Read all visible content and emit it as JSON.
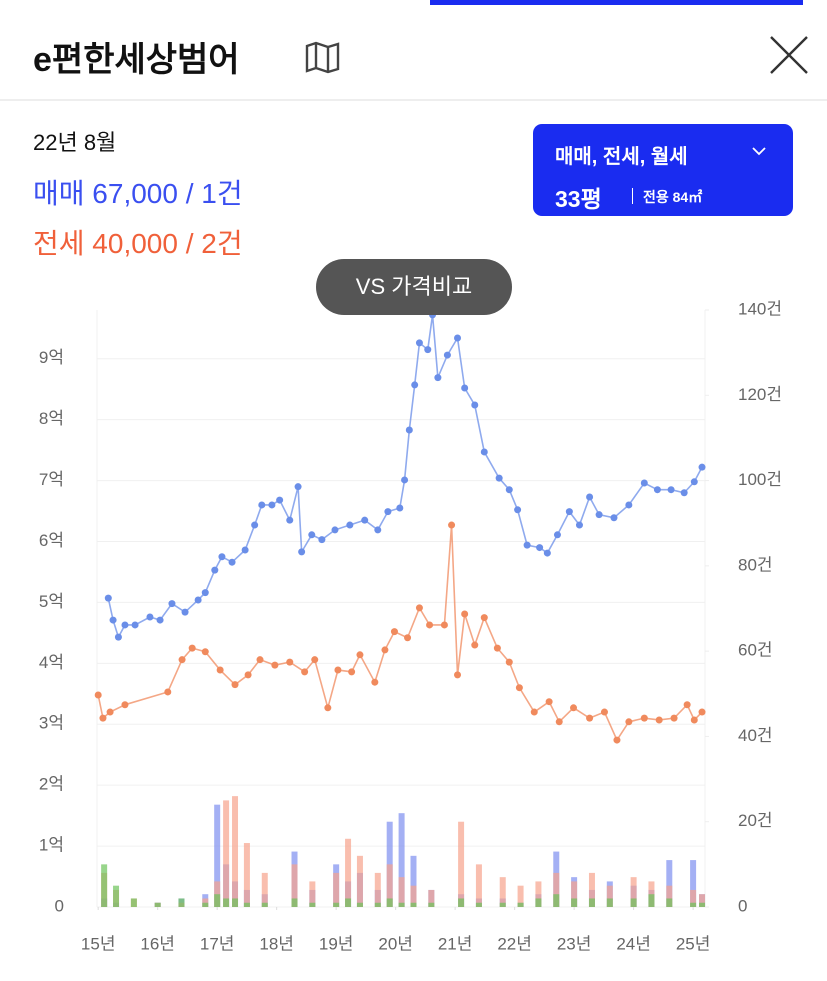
{
  "header": {
    "title": "e편한세상범어"
  },
  "summary": {
    "date": "22년 8월",
    "sale": "매매 67,000 / 1건",
    "rent": "전세 40,000 / 2건"
  },
  "filter": {
    "types": "매매, 전세, 월세",
    "size": "33평",
    "area": "전용 84㎡"
  },
  "tooltip": "VS 가격비교",
  "chart_data": {
    "type": "line",
    "xlim": [
      14.98,
      25.2
    ],
    "xticks": [
      {
        "value": 15,
        "label": "15년"
      },
      {
        "value": 16,
        "label": "16년"
      },
      {
        "value": 17,
        "label": "17년"
      },
      {
        "value": 18,
        "label": "18년"
      },
      {
        "value": 19,
        "label": "19년"
      },
      {
        "value": 20,
        "label": "20년"
      },
      {
        "value": 21,
        "label": "21년"
      },
      {
        "value": 22,
        "label": "22년"
      },
      {
        "value": 23,
        "label": "23년"
      },
      {
        "value": 24,
        "label": "24년"
      },
      {
        "value": 25,
        "label": "25년"
      }
    ],
    "ylim": [
      0,
      9.8
    ],
    "yticks": [
      0,
      {
        "value": 1,
        "label": "1억"
      },
      {
        "value": 2,
        "label": "2억"
      },
      {
        "value": 3,
        "label": "3억"
      },
      {
        "value": 4,
        "label": "4억"
      },
      {
        "value": 5,
        "label": "5억"
      },
      {
        "value": 6,
        "label": "6억"
      },
      {
        "value": 7,
        "label": "7억"
      },
      {
        "value": 8,
        "label": "8억"
      },
      {
        "value": 9,
        "label": "9억"
      }
    ],
    "y2lim": [
      0,
      140
    ],
    "y2ticks": [
      0,
      {
        "value": 20,
        "label": "20건"
      },
      {
        "value": 40,
        "label": "40건"
      },
      {
        "value": 60,
        "label": "60건"
      },
      {
        "value": 80,
        "label": "80건"
      },
      {
        "value": 100,
        "label": "100건"
      },
      {
        "value": 120,
        "label": "120건"
      },
      {
        "value": 140,
        "label": "140건"
      }
    ],
    "grid": true,
    "series": [
      {
        "color": "#6a8ee8",
        "x": [
          15.17,
          15.25,
          15.34,
          15.45,
          15.62,
          15.87,
          16.04,
          16.24,
          16.46,
          16.68,
          16.8,
          16.96,
          17.08,
          17.25,
          17.47,
          17.63,
          17.75,
          17.92,
          18.05,
          18.22,
          18.36,
          18.42,
          18.59,
          18.76,
          18.98,
          19.23,
          19.48,
          19.7,
          19.87,
          20.07,
          20.15,
          20.23,
          20.32,
          20.4,
          20.54,
          20.62,
          20.71,
          20.87,
          21.04,
          21.16,
          21.33,
          21.49,
          21.74,
          21.91,
          22.05,
          22.21,
          22.42,
          22.55,
          22.72,
          22.92,
          23.09,
          23.26,
          23.42,
          23.67,
          23.92,
          24.18,
          24.4,
          24.63,
          24.85,
          25.02,
          25.15
        ],
        "values": [
          5.07,
          4.71,
          4.43,
          4.63,
          4.63,
          4.76,
          4.71,
          4.98,
          4.84,
          5.04,
          5.16,
          5.53,
          5.75,
          5.66,
          5.86,
          6.27,
          6.6,
          6.6,
          6.68,
          6.35,
          6.9,
          5.83,
          6.11,
          6.03,
          6.19,
          6.27,
          6.35,
          6.19,
          6.49,
          6.55,
          7.01,
          7.83,
          8.57,
          9.26,
          9.15,
          9.72,
          8.69,
          9.06,
          9.34,
          8.52,
          8.24,
          7.47,
          7.04,
          6.85,
          6.52,
          5.94,
          5.9,
          5.81,
          6.11,
          6.49,
          6.27,
          6.73,
          6.44,
          6.39,
          6.6,
          6.96,
          6.85,
          6.85,
          6.8,
          6.98,
          7.22
        ]
      },
      {
        "color": "#f08a5d",
        "x": [
          15.0,
          15.08,
          15.2,
          15.45,
          16.17,
          16.41,
          16.58,
          16.8,
          17.05,
          17.3,
          17.52,
          17.72,
          17.97,
          18.22,
          18.47,
          18.64,
          18.86,
          19.03,
          19.26,
          19.4,
          19.65,
          19.82,
          19.98,
          20.2,
          20.4,
          20.57,
          20.82,
          20.94,
          21.04,
          21.16,
          21.33,
          21.49,
          21.71,
          21.91,
          22.08,
          22.33,
          22.58,
          22.75,
          22.99,
          23.26,
          23.51,
          23.72,
          23.92,
          24.18,
          24.43,
          24.68,
          24.9,
          25.02,
          25.15
        ],
        "values": [
          3.48,
          3.1,
          3.2,
          3.32,
          3.53,
          4.06,
          4.25,
          4.19,
          3.89,
          3.65,
          3.81,
          4.06,
          3.97,
          4.02,
          3.86,
          4.06,
          3.27,
          3.89,
          3.86,
          4.14,
          3.69,
          4.22,
          4.52,
          4.42,
          4.91,
          4.63,
          4.63,
          6.27,
          3.81,
          4.81,
          4.3,
          4.75,
          4.25,
          4.02,
          3.6,
          3.2,
          3.37,
          3.04,
          3.27,
          3.1,
          3.2,
          2.74,
          3.04,
          3.1,
          3.07,
          3.1,
          3.32,
          3.07,
          3.2
        ]
      }
    ],
    "bar_x": [
      15.1,
      15.3,
      15.6,
      16.0,
      16.4,
      16.8,
      17.0,
      17.15,
      17.3,
      17.5,
      17.8,
      18.3,
      18.6,
      19.0,
      19.2,
      19.4,
      19.7,
      19.9,
      20.1,
      20.3,
      20.6,
      21.1,
      21.4,
      21.8,
      22.1,
      22.4,
      22.7,
      23.0,
      23.3,
      23.6,
      24.0,
      24.3,
      24.6,
      25.0,
      25.15
    ],
    "bar_series": [
      {
        "color": "#7d8ff0",
        "axis": "y2",
        "values": [
          2,
          1,
          0,
          1,
          2,
          3,
          24,
          10,
          6,
          4,
          3,
          13,
          4,
          10,
          6,
          8,
          4,
          20,
          22,
          12,
          4,
          3,
          2,
          2,
          1,
          3,
          13,
          7,
          4,
          6,
          5,
          4,
          11,
          11,
          3
        ]
      },
      {
        "color": "#f7a28c",
        "axis": "y2",
        "values": [
          8,
          4,
          2,
          1,
          1,
          2,
          6,
          25,
          26,
          15,
          8,
          10,
          6,
          8,
          16,
          12,
          8,
          10,
          7,
          5,
          4,
          20,
          10,
          7,
          5,
          6,
          8,
          6,
          8,
          5,
          7,
          6,
          5,
          4,
          3
        ]
      },
      {
        "color": "#6cc35a",
        "axis": "y2",
        "values": [
          10,
          5,
          2,
          1,
          2,
          1,
          3,
          2,
          2,
          1,
          1,
          2,
          1,
          1,
          2,
          1,
          1,
          2,
          1,
          1,
          1,
          2,
          1,
          1,
          1,
          2,
          3,
          2,
          2,
          2,
          2,
          3,
          2,
          1,
          1
        ]
      }
    ]
  }
}
